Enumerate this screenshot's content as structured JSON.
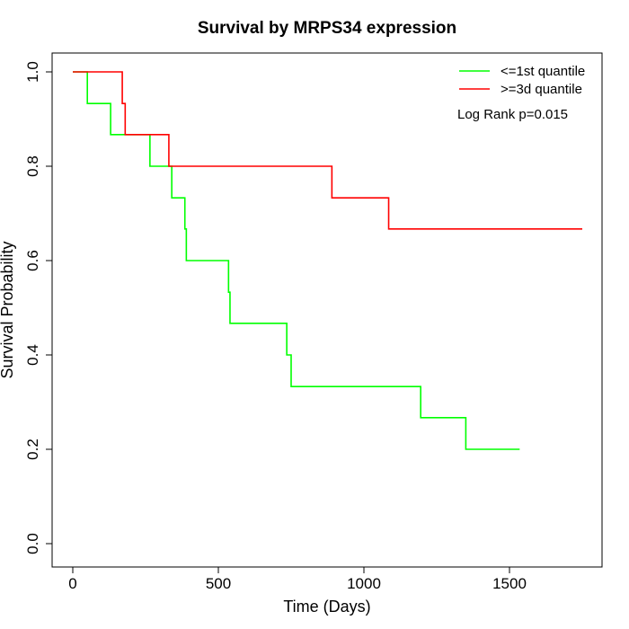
{
  "chart_data": {
    "type": "line",
    "title": "Survival by MRPS34 expression",
    "xlabel": "Time (Days)",
    "ylabel": "Survival Probability",
    "xlim": [
      0,
      1750
    ],
    "ylim": [
      0,
      1
    ],
    "x_ticks": [
      0,
      500,
      1000,
      1500
    ],
    "x_tick_labels": [
      "0",
      "500",
      "1000",
      "1500"
    ],
    "y_ticks": [
      0,
      0.2,
      0.4,
      0.6,
      0.8,
      1
    ],
    "y_tick_labels": [
      "0.0",
      "0.2",
      "0.4",
      "0.6",
      "0.8",
      "1.0"
    ],
    "grid": false,
    "legend_position": "top-right",
    "annotation": "Log Rank p=0.015",
    "series": [
      {
        "name": "<=1st quantile",
        "color": "#00ff00",
        "step": true,
        "x": [
          0,
          50,
          130,
          265,
          340,
          385,
          390,
          535,
          540,
          735,
          750,
          1195,
          1350,
          1535
        ],
        "y": [
          1.0,
          0.933,
          0.867,
          0.8,
          0.733,
          0.667,
          0.6,
          0.533,
          0.467,
          0.4,
          0.333,
          0.267,
          0.2,
          0.2
        ]
      },
      {
        "name": ">=3d quantile",
        "color": "#ff0000",
        "step": true,
        "x": [
          0,
          170,
          180,
          330,
          890,
          1085,
          1750
        ],
        "y": [
          1.0,
          0.933,
          0.867,
          0.8,
          0.733,
          0.667,
          0.667
        ]
      }
    ]
  }
}
